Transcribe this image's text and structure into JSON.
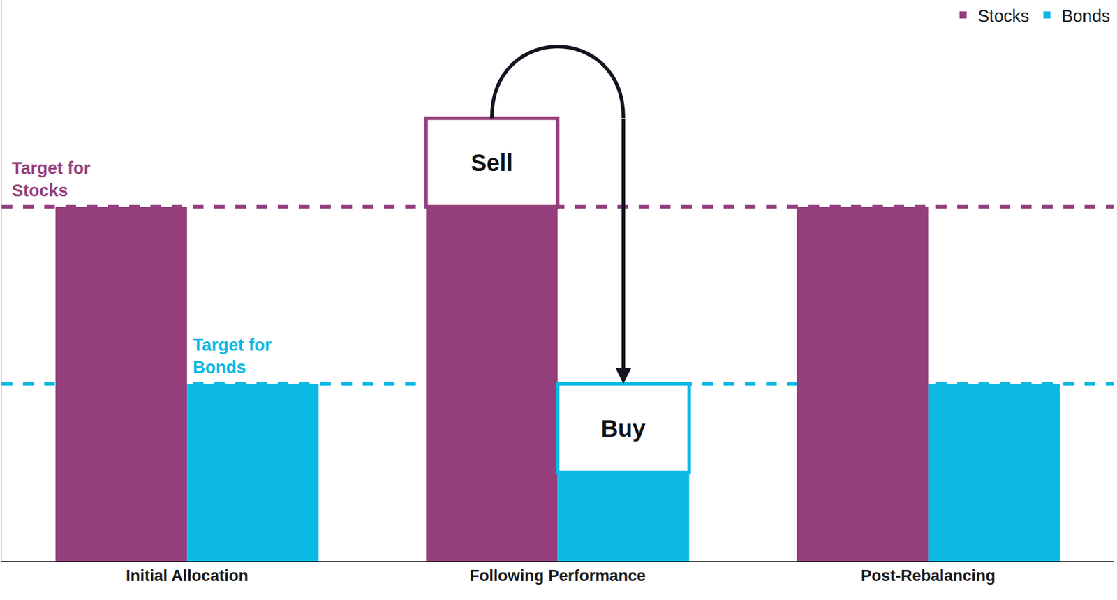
{
  "chart_data": {
    "type": "bar",
    "categories": [
      "Initial Allocation",
      "Following Performance",
      "Post-Rebalancing"
    ],
    "series": [
      {
        "name": "Stocks",
        "color": "#943e7c",
        "values": [
          60,
          60,
          60
        ]
      },
      {
        "name": "Bonds",
        "color": "#0bb9e4",
        "values": [
          30,
          15,
          30
        ]
      }
    ],
    "targets": [
      {
        "label": "Target for\nStocks",
        "series": "Stocks",
        "value": 60
      },
      {
        "label": "Target for\nBonds",
        "series": "Bonds",
        "value": 30
      }
    ],
    "trades": [
      {
        "label": "Sell",
        "series": "Stocks",
        "category": "Following Performance",
        "value": 15
      },
      {
        "label": "Buy",
        "series": "Bonds",
        "category": "Following Performance",
        "value": 15
      }
    ],
    "ylim": [
      0,
      95
    ],
    "yticks": [],
    "tick_labels": "x",
    "legend": "top right",
    "grid": false
  }
}
